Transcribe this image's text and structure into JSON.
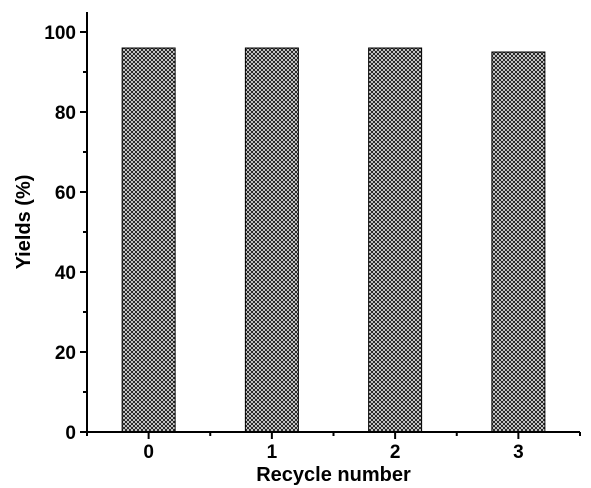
{
  "chart_data": {
    "type": "bar",
    "title": "",
    "xlabel": "Recycle number",
    "ylabel": "Yields (%)",
    "categories": [
      "0",
      "1",
      "2",
      "3"
    ],
    "values": [
      96,
      96,
      96,
      95
    ],
    "ylim": [
      0,
      105
    ],
    "yticks": [
      "0",
      "20",
      "40",
      "60",
      "80",
      "100"
    ],
    "grid": false,
    "legend": "none",
    "bar_fill": "crosshatch",
    "bar_color": "#000000"
  }
}
